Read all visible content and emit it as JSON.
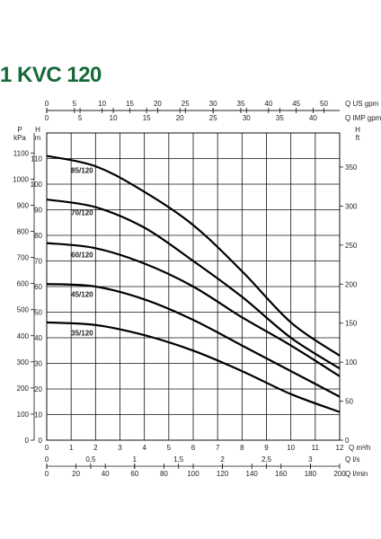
{
  "title": "1 KVC 120",
  "chart_data": {
    "type": "line",
    "title": "1 KVC 120",
    "x": [
      0,
      2,
      4,
      6,
      8,
      10,
      12
    ],
    "xlim": [
      0,
      12
    ],
    "ylim_m": [
      0,
      120
    ],
    "series": [
      {
        "name": "85/120",
        "values": [
          111,
          107,
          97,
          84,
          66,
          46,
          33
        ]
      },
      {
        "name": "70/120",
        "values": [
          94,
          91,
          83,
          70,
          56,
          40,
          28
        ]
      },
      {
        "name": "60/120",
        "values": [
          77,
          75,
          69,
          60,
          48,
          37,
          25
        ]
      },
      {
        "name": "45/120",
        "values": [
          61,
          60,
          55,
          47,
          37,
          27,
          17
        ]
      },
      {
        "name": "35/120",
        "values": [
          46,
          45,
          41,
          35,
          27,
          18,
          11
        ]
      }
    ],
    "axes": {
      "top1": {
        "label": "Q US gpm",
        "ticks": [
          0,
          5,
          10,
          15,
          20,
          25,
          30,
          35,
          40,
          45,
          50
        ]
      },
      "top2": {
        "label": "Q IMP gpm",
        "ticks": [
          0,
          5,
          10,
          15,
          20,
          25,
          30,
          35,
          40
        ]
      },
      "left_kpa": {
        "label_top": "P",
        "label_bottom": "kPa",
        "ticks": [
          0,
          100,
          200,
          300,
          400,
          500,
          600,
          700,
          800,
          900,
          1000,
          1100
        ]
      },
      "left_m": {
        "label": "H",
        "unit": "m",
        "ticks": [
          0,
          10,
          20,
          30,
          40,
          50,
          60,
          70,
          80,
          90,
          100,
          110
        ]
      },
      "right_ft": {
        "label": "H",
        "unit": "ft",
        "ticks": [
          0,
          50,
          100,
          150,
          200,
          250,
          300,
          350
        ]
      },
      "bottom_m3h": {
        "label": "Q m³/h",
        "ticks": [
          0,
          1,
          2,
          3,
          4,
          5,
          6,
          7,
          8,
          9,
          10,
          11,
          12
        ]
      },
      "bottom_ls": {
        "label": "Q l/s",
        "ticks": [
          "0",
          "0,5",
          "1",
          "1,5",
          "2",
          "2,5",
          "3"
        ]
      },
      "bottom_lmin": {
        "label": "Q l/min",
        "ticks": [
          0,
          20,
          40,
          60,
          80,
          100,
          120,
          140,
          160,
          180,
          200
        ]
      }
    },
    "grid": true
  }
}
